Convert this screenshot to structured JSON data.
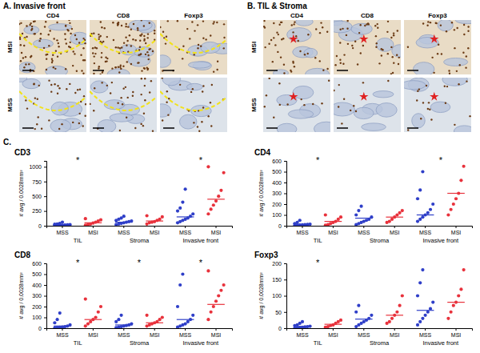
{
  "panels": [
    {
      "label": "A. Invasive front",
      "columns": [
        "CD4",
        "CD8",
        "Foxp3"
      ],
      "rows": [
        "MSI",
        "MSS"
      ]
    },
    {
      "label": "B. TIL & Stroma",
      "columns": [
        "CD4",
        "CD8",
        "Foxp3"
      ],
      "rows": [
        "MSI",
        "MSS"
      ]
    }
  ],
  "panel_c_label": "C.",
  "chart_data": [
    {
      "type": "scatter",
      "title": "CD3",
      "ylabel": "# avg / 0.0028mm²",
      "categories": [
        "MSS",
        "MSI",
        "MSS",
        "MSI",
        "MSS",
        "MSI"
      ],
      "groups": [
        "TIL",
        "Stroma",
        "Invasive front"
      ],
      "colors": [
        "#2f3fc8",
        "#e8323c",
        "#2f3fc8",
        "#e8323c",
        "#2f3fc8",
        "#e8323c"
      ],
      "values": [
        [
          2,
          5,
          8,
          10,
          12,
          15,
          20,
          25,
          30,
          40,
          60,
          5,
          3
        ],
        [
          10,
          20,
          30,
          45,
          60,
          80,
          100,
          120
        ],
        [
          20,
          30,
          40,
          50,
          60,
          70,
          80,
          90,
          110,
          130,
          160
        ],
        [
          30,
          50,
          60,
          70,
          90,
          110,
          150,
          170
        ],
        [
          50,
          70,
          90,
          110,
          130,
          160,
          200,
          250,
          300,
          400,
          620
        ],
        [
          200,
          280,
          350,
          420,
          500,
          600,
          900,
          1000
        ]
      ],
      "means": [
        15,
        50,
        60,
        80,
        150,
        450
      ],
      "annotations": [
        {
          "text": "*",
          "category": 1
        },
        {
          "text": "*",
          "category": 5
        }
      ],
      "ylim": [
        0,
        1100
      ],
      "yticks": [
        0,
        250,
        500,
        750,
        1000
      ]
    },
    {
      "type": "scatter",
      "title": "CD4",
      "ylabel": "# avg / 0.0028mm²",
      "categories": [
        "MSS",
        "MSI",
        "MSS",
        "MSI",
        "MSS",
        "MSI"
      ],
      "groups": [
        "TIL",
        "Stroma",
        "Invasive front"
      ],
      "colors": [
        "#2f3fc8",
        "#e8323c",
        "#2f3fc8",
        "#e8323c",
        "#2f3fc8",
        "#e8323c"
      ],
      "values": [
        [
          2,
          4,
          6,
          8,
          10,
          12,
          15,
          20,
          30,
          50
        ],
        [
          5,
          10,
          20,
          30,
          40,
          60,
          80,
          100
        ],
        [
          10,
          20,
          30,
          40,
          50,
          60,
          80,
          100,
          140,
          180
        ],
        [
          30,
          40,
          60,
          80,
          100,
          120,
          140
        ],
        [
          40,
          60,
          80,
          100,
          120,
          150,
          200,
          250,
          330,
          500
        ],
        [
          100,
          150,
          200,
          250,
          300,
          420,
          550
        ]
      ],
      "means": [
        12,
        40,
        70,
        80,
        100,
        300
      ],
      "annotations": [
        {
          "text": "*",
          "category": 1
        },
        {
          "text": "*",
          "category": 5
        }
      ],
      "ylim": [
        0,
        600
      ],
      "yticks": [
        0,
        100,
        200,
        300,
        400,
        500,
        600
      ]
    },
    {
      "type": "scatter",
      "title": "CD8",
      "ylabel": "# avg / 0.0028mm²",
      "categories": [
        "MSS",
        "MSI",
        "MSS",
        "MSI",
        "MSS",
        "MSI"
      ],
      "groups": [
        "TIL",
        "Stroma",
        "Invasive front"
      ],
      "colors": [
        "#2f3fc8",
        "#e8323c",
        "#2f3fc8",
        "#e8323c",
        "#2f3fc8",
        "#e8323c"
      ],
      "values": [
        [
          2,
          5,
          8,
          10,
          15,
          20,
          30,
          50,
          80,
          140
        ],
        [
          20,
          40,
          60,
          80,
          100,
          150,
          200,
          270
        ],
        [
          5,
          10,
          15,
          20,
          25,
          30,
          40,
          60,
          80,
          120
        ],
        [
          20,
          30,
          40,
          50,
          60,
          80,
          100,
          120
        ],
        [
          10,
          20,
          30,
          40,
          60,
          80,
          120,
          200,
          400,
          500
        ],
        [
          80,
          150,
          200,
          250,
          300,
          350,
          400,
          530
        ]
      ],
      "means": [
        20,
        80,
        30,
        50,
        80,
        220
      ],
      "annotations": [
        {
          "text": "*",
          "category": 1
        },
        {
          "text": "*",
          "category": 3
        },
        {
          "text": "*",
          "category": 5
        }
      ],
      "ylim": [
        0,
        600
      ],
      "yticks": [
        0,
        100,
        200,
        300,
        400,
        500,
        600
      ]
    },
    {
      "type": "scatter",
      "title": "Foxp3",
      "ylabel": "# avg / 0.0028mm²",
      "categories": [
        "MSS",
        "MSI",
        "MSS",
        "MSI",
        "MSS",
        "MSI"
      ],
      "groups": [
        "TIL",
        "Stroma",
        "Invasive front"
      ],
      "colors": [
        "#2f3fc8",
        "#e8323c",
        "#2f3fc8",
        "#e8323c",
        "#2f3fc8",
        "#e8323c"
      ],
      "values": [
        [
          0,
          1,
          2,
          3,
          4,
          5,
          6,
          8,
          10,
          15,
          20
        ],
        [
          3,
          5,
          8,
          10,
          15,
          20,
          25
        ],
        [
          5,
          10,
          15,
          20,
          25,
          30,
          40,
          50,
          70
        ],
        [
          15,
          20,
          30,
          40,
          50,
          70,
          100
        ],
        [
          10,
          20,
          30,
          40,
          50,
          60,
          80,
          100,
          140,
          180
        ],
        [
          30,
          50,
          70,
          80,
          100,
          120,
          180
        ]
      ],
      "means": [
        5,
        12,
        28,
        40,
        55,
        80
      ],
      "annotations": [
        {
          "text": "*",
          "category": 1
        }
      ],
      "ylim": [
        0,
        200
      ],
      "yticks": [
        0,
        50,
        100,
        150,
        200
      ]
    }
  ]
}
